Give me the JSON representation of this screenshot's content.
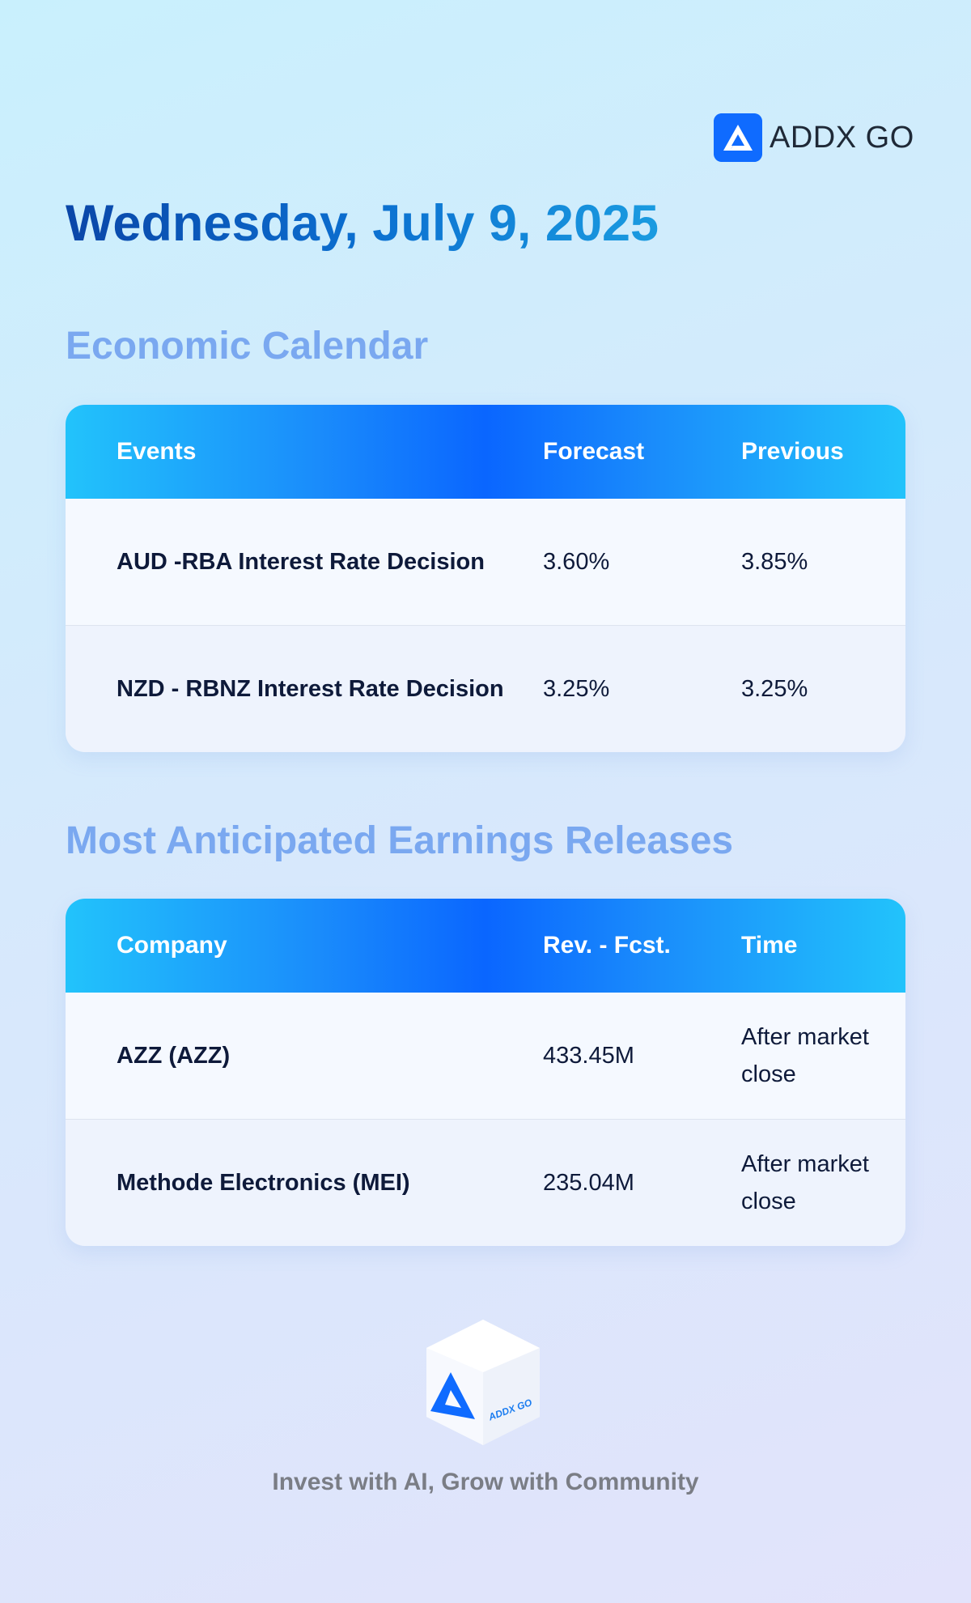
{
  "header": {
    "brand": "ADDX GO",
    "date": "Wednesday, July 9, 2025"
  },
  "sections": [
    {
      "title": "Economic Calendar",
      "columns": [
        "Events",
        "Forecast",
        "Previous"
      ],
      "rows": [
        [
          "AUD -RBA Interest Rate Decision",
          "3.60%",
          "3.85%"
        ],
        [
          "NZD - RBNZ Interest Rate Decision",
          "3.25%",
          "3.25%"
        ]
      ]
    },
    {
      "title": "Most Anticipated Earnings Releases",
      "columns": [
        "Company",
        "Rev. - Fcst.",
        "Time"
      ],
      "rows": [
        [
          "AZZ (AZZ)",
          "433.45M",
          "After market close"
        ],
        [
          "Methode Electronics (MEI)",
          "235.04M",
          "After market close"
        ]
      ]
    }
  ],
  "footer": {
    "cube_label": "ADDX GO",
    "tagline": "Invest with AI, Grow with Community"
  }
}
